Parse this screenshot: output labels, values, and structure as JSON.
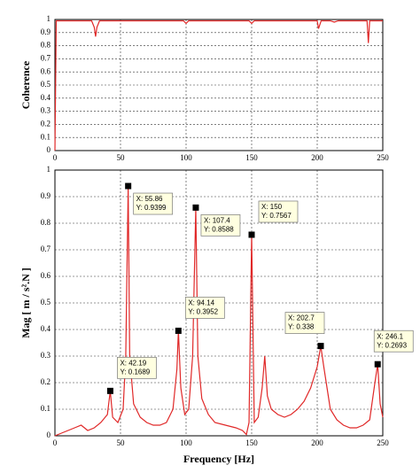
{
  "chart_data": [
    {
      "type": "line",
      "ylabel": "Coherence",
      "xlim": [
        0,
        250
      ],
      "xticks": [
        0,
        50,
        100,
        150,
        200,
        250
      ],
      "ylim": [
        0,
        1
      ],
      "yticks": [
        0,
        0.1,
        0.2,
        0.3,
        0.4,
        0.5,
        0.6,
        0.7,
        0.8,
        0.9,
        1
      ],
      "grid": true,
      "series": [
        {
          "color": "#e02828",
          "x": [
            0,
            1,
            28,
            30,
            31,
            32,
            34,
            98,
            100,
            102,
            148,
            150,
            152,
            200,
            201,
            203,
            210,
            213,
            216,
            238,
            239,
            240,
            250
          ],
          "values": [
            0,
            0.99,
            0.99,
            0.94,
            0.87,
            0.94,
            0.99,
            0.99,
            0.97,
            0.99,
            0.99,
            0.97,
            0.99,
            0.99,
            0.93,
            0.99,
            0.99,
            0.98,
            0.99,
            0.99,
            0.82,
            0.99,
            0.99
          ]
        }
      ]
    },
    {
      "type": "line",
      "ylabel": "Mag [ m / s².N ]",
      "xlabel": "Frequency [Hz]",
      "xlim": [
        0,
        250
      ],
      "xticks": [
        0,
        50,
        100,
        150,
        200,
        250
      ],
      "ylim": [
        0,
        1
      ],
      "yticks": [
        0,
        0.1,
        0.2,
        0.3,
        0.4,
        0.5,
        0.6,
        0.7,
        0.8,
        0.9,
        1
      ],
      "grid": true,
      "series": [
        {
          "color": "#e02828",
          "x": [
            0,
            5,
            10,
            15,
            20,
            25,
            30,
            35,
            40,
            42.19,
            44,
            48,
            52,
            54,
            55.86,
            57,
            60,
            65,
            70,
            75,
            80,
            85,
            90,
            93,
            94.14,
            96,
            99,
            102,
            105,
            107.4,
            109,
            112,
            117,
            122,
            130,
            138,
            143,
            146,
            148,
            150,
            152,
            155,
            158,
            160,
            162,
            165,
            170,
            175,
            180,
            185,
            190,
            195,
            200,
            202.7,
            205,
            210,
            215,
            220,
            225,
            230,
            235,
            240,
            244,
            246.1,
            248,
            250
          ],
          "values": [
            0,
            0.01,
            0.02,
            0.03,
            0.04,
            0.02,
            0.03,
            0.05,
            0.08,
            0.1689,
            0.07,
            0.05,
            0.1,
            0.3,
            0.9399,
            0.3,
            0.12,
            0.07,
            0.05,
            0.04,
            0.04,
            0.05,
            0.1,
            0.25,
            0.3952,
            0.18,
            0.08,
            0.1,
            0.3,
            0.8588,
            0.3,
            0.14,
            0.08,
            0.05,
            0.04,
            0.03,
            0.02,
            0.005,
            0.05,
            0.7567,
            0.05,
            0.07,
            0.18,
            0.3,
            0.15,
            0.1,
            0.08,
            0.07,
            0.08,
            0.1,
            0.13,
            0.18,
            0.26,
            0.338,
            0.26,
            0.1,
            0.06,
            0.04,
            0.03,
            0.03,
            0.04,
            0.06,
            0.2,
            0.2693,
            0.12,
            0.07
          ]
        }
      ],
      "datatips": [
        {
          "x": 42.19,
          "y": 0.1689,
          "x_label": "X: 42.19",
          "y_label": "Y: 0.1689"
        },
        {
          "x": 55.86,
          "y": 0.9399,
          "x_label": "X: 55.86",
          "y_label": "Y: 0.9399"
        },
        {
          "x": 94.14,
          "y": 0.3952,
          "x_label": "X: 94.14",
          "y_label": "Y: 0.3952"
        },
        {
          "x": 107.4,
          "y": 0.8588,
          "x_label": "X: 107.4",
          "y_label": "Y: 0.8588"
        },
        {
          "x": 150,
          "y": 0.7567,
          "x_label": "X: 150",
          "y_label": "Y: 0.7567"
        },
        {
          "x": 202.7,
          "y": 0.338,
          "x_label": "X: 202.7",
          "y_label": "Y: 0.338"
        },
        {
          "x": 246.1,
          "y": 0.2693,
          "x_label": "X: 246.1",
          "y_label": "Y: 0.2693"
        }
      ]
    }
  ]
}
